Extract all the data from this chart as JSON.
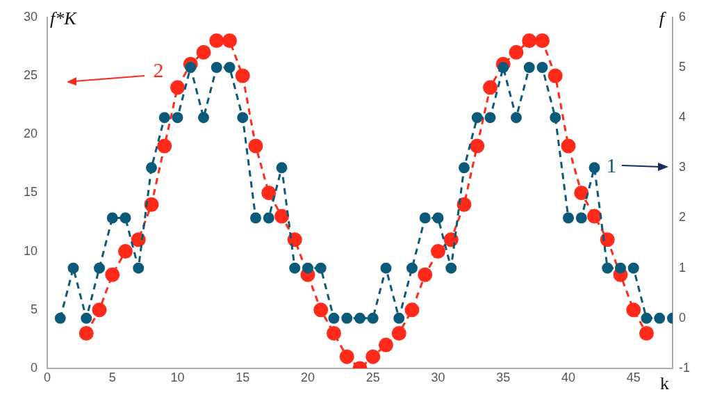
{
  "chart_data": {
    "type": "line",
    "xlabel": "k",
    "ylabel": "f*K",
    "y2label": "f",
    "xlim": [
      0,
      48
    ],
    "xticks": [
      0,
      5,
      10,
      15,
      20,
      25,
      30,
      35,
      40,
      45
    ],
    "ylim": [
      0,
      30
    ],
    "yticks": [
      0,
      5,
      10,
      15,
      20,
      25,
      30
    ],
    "y2lim": [
      -1,
      6
    ],
    "y2ticks": [
      -1,
      0,
      1,
      2,
      3,
      4,
      5,
      6
    ],
    "grid": false,
    "marker": "circle",
    "line_style": "dashed",
    "annotations": [
      "2",
      "1"
    ],
    "series": [
      {
        "color": "#ff2a1a",
        "axis": "y",
        "x": [
          3,
          4,
          5,
          6,
          7,
          8,
          9,
          10,
          11,
          12,
          13,
          14,
          15,
          16,
          17,
          18,
          19,
          20,
          21,
          22,
          23,
          24,
          25,
          26,
          27,
          28,
          29,
          30,
          31,
          32,
          33,
          34,
          35,
          36,
          37,
          38,
          39,
          40,
          41,
          42,
          43,
          44,
          45,
          46
        ],
        "values": [
          3,
          5,
          8,
          10,
          11,
          14,
          19,
          24,
          26,
          27,
          28,
          28,
          25,
          19,
          15,
          13,
          11,
          8,
          5,
          3,
          1,
          0,
          1,
          2,
          3,
          5,
          8,
          10,
          11,
          14,
          19,
          24,
          26,
          27,
          28,
          28,
          25,
          19,
          15,
          13,
          11,
          8,
          5,
          3
        ]
      },
      {
        "color": "#0b5a7a",
        "axis": "y2",
        "x": [
          1,
          2,
          3,
          4,
          5,
          6,
          7,
          8,
          9,
          10,
          11,
          12,
          13,
          14,
          15,
          16,
          17,
          18,
          19,
          20,
          21,
          22,
          23,
          24,
          25,
          26,
          27,
          28,
          29,
          30,
          31,
          32,
          33,
          34,
          35,
          36,
          37,
          38,
          39,
          40,
          41,
          42,
          43,
          44,
          45,
          46,
          47,
          48
        ],
        "values": [
          0,
          1,
          0,
          1,
          2,
          2,
          1,
          3,
          4,
          4,
          5,
          4,
          5,
          5,
          4,
          2,
          2,
          3,
          1,
          1,
          1,
          0,
          0,
          0,
          0,
          1,
          0,
          1,
          2,
          2,
          1,
          3,
          4,
          4,
          5,
          4,
          5,
          5,
          4,
          2,
          2,
          3,
          1,
          1,
          1,
          0,
          0,
          0
        ]
      }
    ]
  }
}
